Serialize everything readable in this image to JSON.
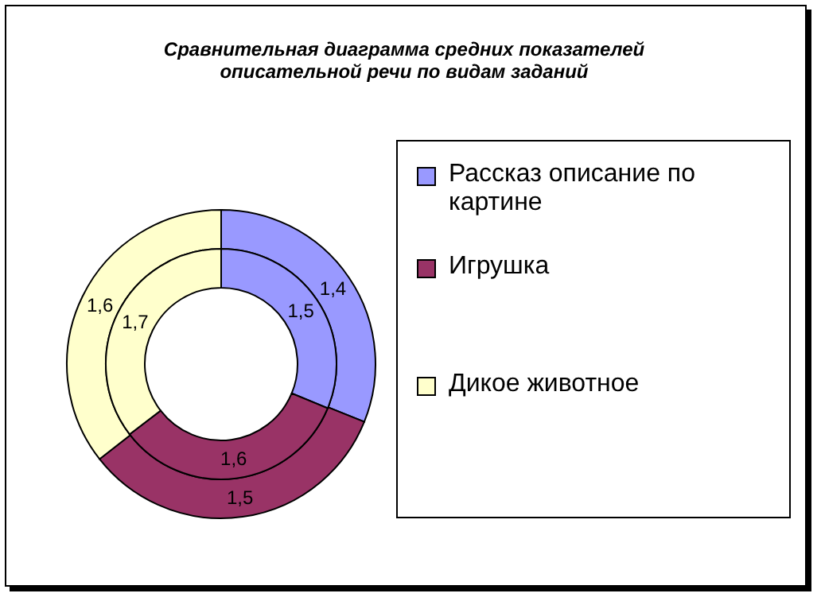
{
  "chart_data": {
    "type": "donut",
    "title": "Сравнительная диаграмма средних показателей описательной речи по видам заданий",
    "categories": [
      "Рассказ описание по картине",
      "Игрушка",
      "Дикое животное"
    ],
    "colors": [
      "#9999ff",
      "#993366",
      "#ffffcc"
    ],
    "series": [
      {
        "values": [
          1.4,
          1.5,
          1.6
        ],
        "value_labels": [
          "1,4",
          "1,5",
          "1,6"
        ]
      },
      {
        "values": [
          1.5,
          1.6,
          1.7
        ],
        "value_labels": [
          "1,5",
          "1,6",
          "1,7"
        ]
      }
    ],
    "legend": "right"
  }
}
